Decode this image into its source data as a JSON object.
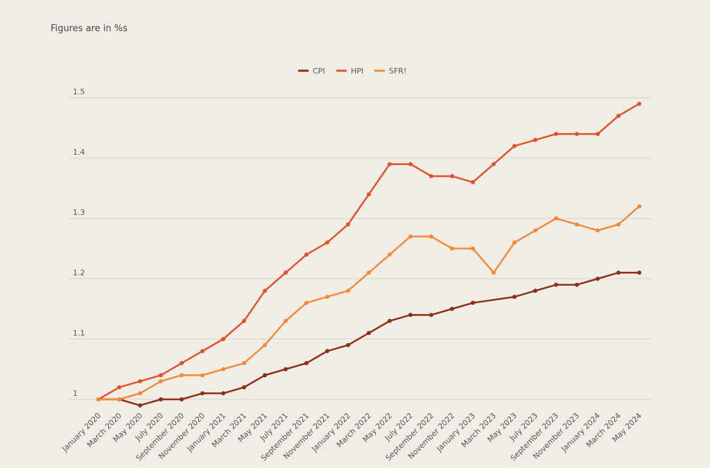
{
  "note": "Figures are in %s",
  "chart_data": {
    "type": "line",
    "title": "",
    "xlabel": "",
    "ylabel": "",
    "ylim": [
      1,
      1.5
    ],
    "yticks": [
      1,
      1.1,
      1.2,
      1.3,
      1.4,
      1.5
    ],
    "ytick_labels": [
      "1",
      "1.1",
      "1.2",
      "1.3",
      "1.4",
      "1.5"
    ],
    "grid": "horizontal",
    "legend_position": "top-center",
    "categories": [
      "January 2020",
      "March 2020",
      "May 2020",
      "July 2020",
      "September 2020",
      "November 2020",
      "January 2021",
      "March 2021",
      "May 2021",
      "July 2021",
      "September 2021",
      "November 2021",
      "January 2022",
      "March 2022",
      "May 2022",
      "July 2022",
      "September 2022",
      "November 2022",
      "January 2023",
      "March 2023",
      "May 2023",
      "July 2023",
      "September 2023",
      "November 2023",
      "January 2024",
      "March 2024",
      "May 2024"
    ],
    "series": [
      {
        "name": "CPI",
        "color": "#8e2f14",
        "values": [
          1,
          1,
          0.99,
          1,
          1,
          1.01,
          1.01,
          1.02,
          1.04,
          1.05,
          1.06,
          1.08,
          1.09,
          1.11,
          1.13,
          1.14,
          1.14,
          1.15,
          1.16,
          null,
          1.17,
          1.18,
          1.19,
          1.19,
          1.2,
          1.21,
          1.21
        ]
      },
      {
        "name": "HPI",
        "color": "#e0522a",
        "values": [
          1,
          1.02,
          1.03,
          1.04,
          1.06,
          1.08,
          1.1,
          1.13,
          1.18,
          1.21,
          1.24,
          1.26,
          1.29,
          1.34,
          1.39,
          1.39,
          1.37,
          1.37,
          1.36,
          1.39,
          1.42,
          1.43,
          1.44,
          1.44,
          1.44,
          1.47,
          1.49
        ]
      },
      {
        "name": "SFR!",
        "color": "#f28a38",
        "values": [
          1,
          1,
          1.01,
          1.03,
          1.04,
          1.04,
          1.05,
          1.06,
          1.09,
          1.13,
          1.16,
          1.17,
          1.18,
          1.21,
          1.24,
          1.27,
          1.27,
          1.25,
          1.25,
          1.21,
          1.26,
          1.28,
          1.3,
          1.29,
          1.28,
          1.29,
          1.32
        ]
      }
    ]
  }
}
